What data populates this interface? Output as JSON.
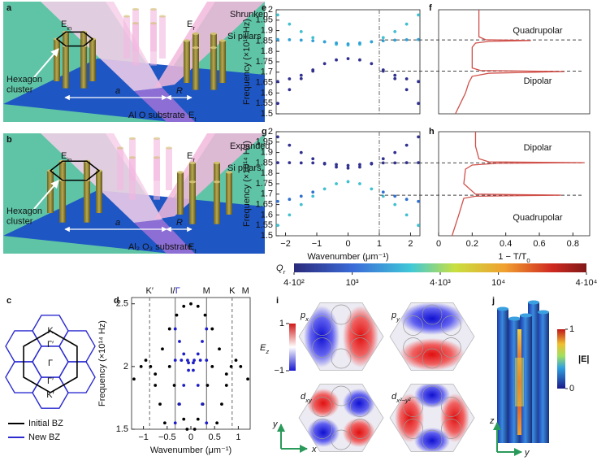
{
  "panels": {
    "a": {
      "letter": "a",
      "incident": {
        "main": "E",
        "sub": "in"
      },
      "reflected": {
        "main": "E",
        "sub": "r"
      },
      "mode": "Shrunken",
      "pillars": "Si pillars",
      "cluster": [
        "Hexagon",
        "cluster"
      ],
      "lattice": "a",
      "radius": "R",
      "substrate": "Al O substrate",
      "transmitted": {
        "main": "E",
        "sub": "t"
      }
    },
    "b": {
      "letter": "b",
      "incident": {
        "main": "E",
        "sub": "in"
      },
      "reflected": {
        "main": "E",
        "sub": "r"
      },
      "mode": "Expanded",
      "pillars": "Si pillars",
      "cluster": [
        "Hexagon",
        "cluster"
      ],
      "lattice": "a",
      "radius": "R",
      "substrate": "Al₂ O₃ substrate",
      "transmitted": {
        "main": "E",
        "sub": "t"
      }
    },
    "c": {
      "letter": "c",
      "points": [
        "K",
        "Γ′",
        "Γ",
        "Γ′",
        "K′"
      ],
      "legend": [
        {
          "name": "Initial BZ",
          "color": "#000000"
        },
        {
          "name": "New BZ",
          "color": "#2b2bd0"
        }
      ]
    },
    "i": {
      "letter": "i",
      "modes": [
        {
          "main": "p",
          "sub": "x"
        },
        {
          "main": "p",
          "sub": "y"
        },
        {
          "main": "d",
          "sub": "xy"
        },
        {
          "main": "d",
          "sub": "x²−y²"
        }
      ],
      "colorbar": {
        "label": {
          "main": "E",
          "sub": "z"
        },
        "range": [
          -1,
          1
        ],
        "ticks": [
          1,
          {
            "value": -1,
            "label": "−1"
          }
        ]
      },
      "axes": [
        "y",
        "x"
      ]
    },
    "j": {
      "letter": "j",
      "colorbar": {
        "label": "|E|",
        "range": [
          0,
          1
        ],
        "ticks": [
          1,
          0
        ]
      },
      "axes": [
        "z",
        "y"
      ]
    }
  },
  "colorbar": {
    "label": {
      "main": "Q",
      "sub": "r"
    },
    "range": [
      400,
      40000
    ],
    "log": true,
    "ticks": [
      {
        "value": 400,
        "label": "4·10²"
      },
      {
        "value": 1000,
        "label": "10³"
      },
      {
        "value": 4000,
        "label": "4·10³"
      },
      {
        "value": 10000,
        "label": "10⁴"
      },
      {
        "value": 40000,
        "label": "4·10⁴"
      }
    ]
  },
  "chart_data": [
    {
      "type": "scatter",
      "letter": "d",
      "x_label": "Wavenumber (μm⁻¹)",
      "y_label": "Frequency (×10¹⁴ Hz)",
      "xlim": [
        -1.25,
        1.25
      ],
      "xticks": [
        {
          "value": -1,
          "label": "−1"
        },
        {
          "value": -0.5,
          "label": "−0.5"
        },
        0,
        0.5,
        1
      ],
      "ylim": [
        1.5,
        2.55
      ],
      "yticks": [
        1.5,
        2,
        2.5
      ],
      "vlines": [
        {
          "value": -0.87,
          "style": "dashed",
          "label": "K′"
        },
        {
          "value": -0.33,
          "style": "solid",
          "label": [
            {
              "text": "I/",
              "color": "#000000"
            },
            {
              "text": "Γ",
              "color": "#1e1ec8"
            }
          ]
        },
        {
          "value": 0.33,
          "style": "solid",
          "label": "M",
          "label_color": "#1e1ec8"
        },
        {
          "value": 0.87,
          "style": "dashed",
          "label": "K"
        },
        {
          "value": 1.15,
          "style": "none",
          "label": "M"
        }
      ],
      "series": [
        {
          "color": "#000000",
          "x": [
            -0.75,
            -0.6,
            -0.45,
            -0.3,
            -0.15,
            0,
            0.15,
            0.3,
            0.45,
            0.6,
            0.75
          ],
          "values": [
            1.94,
            2.14,
            2.3,
            2.41,
            2.48,
            2.5,
            2.48,
            2.41,
            2.3,
            2.14,
            1.94
          ]
        },
        {
          "color": "#000000",
          "x": [
            -0.45,
            -0.35,
            -0.25,
            -0.15,
            -0.08
          ],
          "values": [
            2.0,
            1.85,
            1.7,
            1.58,
            1.5
          ]
        },
        {
          "color": "#000000",
          "x": [
            0.08,
            0.15,
            0.25,
            0.35,
            0.45
          ],
          "values": [
            1.5,
            1.58,
            1.7,
            1.85,
            2.0
          ]
        },
        {
          "color": "#000000",
          "x": [
            -1.2,
            -1.05,
            -0.95,
            -0.85,
            -0.75,
            -0.65,
            -0.55
          ],
          "values": [
            1.9,
            2.0,
            2.05,
            2.0,
            1.85,
            1.7,
            1.55
          ]
        },
        {
          "color": "#000000",
          "x": [
            0.55,
            0.65,
            0.75,
            0.85,
            0.95,
            1.05,
            1.2
          ],
          "values": [
            1.55,
            1.7,
            1.85,
            2.0,
            2.05,
            2.0,
            1.9
          ]
        },
        {
          "color": "#1e1ec8",
          "x": [
            -0.33,
            -0.2,
            -0.07,
            0.07,
            0.2,
            0.33
          ],
          "values": [
            2.05,
            2.05,
            2.05,
            2.05,
            2.05,
            2.05
          ]
        },
        {
          "color": "#1e1ec8",
          "x": [
            -0.33,
            -0.24,
            -0.15,
            -0.05,
            0.05,
            0.15,
            0.24,
            0.33
          ],
          "values": [
            2.3,
            2.2,
            2.1,
            2.03,
            2.03,
            2.1,
            2.2,
            2.3
          ]
        },
        {
          "color": "#1e1ec8",
          "x": [
            -0.33,
            -0.24,
            -0.15,
            -0.05,
            0.05,
            0.15,
            0.24,
            0.33
          ],
          "values": [
            1.55,
            1.7,
            1.85,
            1.97,
            1.97,
            1.85,
            1.7,
            1.55
          ]
        }
      ]
    },
    {
      "type": "scatter",
      "letter": "e",
      "y_label": "Frequency (×10¹⁴ Hz)",
      "xlim": [
        -2.3,
        2.3
      ],
      "ylim": [
        1.5,
        2.0
      ],
      "yticks": [
        1.5,
        1.55,
        1.6,
        1.65,
        1.7,
        1.75,
        1.8,
        1.85,
        1.9,
        1.95,
        2
      ],
      "vlines": [
        {
          "value": 1,
          "style": "dashdot"
        }
      ],
      "x": [
        -2.25,
        -1.875,
        -1.5,
        -1.125,
        -0.75,
        -0.375,
        0,
        0.375,
        0.75,
        1.125,
        1.5,
        1.875,
        2.25
      ],
      "series": [
        {
          "color": "#40c0d0",
          "values": [
            1.975,
            1.931,
            1.895,
            1.866,
            1.846,
            1.834,
            1.83,
            1.834,
            1.846,
            1.866,
            1.895,
            1.931,
            1.975
          ]
        },
        {
          "color": "#30a0d8",
          "values": [
            1.857,
            1.856,
            1.854,
            1.851,
            1.846,
            1.84,
            1.836,
            1.84,
            1.846,
            1.851,
            1.854,
            1.856,
            1.857
          ]
        },
        {
          "color": "#303090",
          "values": [
            1.55,
            1.616,
            1.669,
            1.711,
            1.741,
            1.759,
            1.765,
            1.759,
            1.741,
            1.711,
            1.669,
            1.616,
            1.55
          ]
        },
        {
          "color": "#303090",
          "values": [
            1.655,
            1.668,
            1.685,
            1.705,
            null,
            null,
            null,
            null,
            null,
            1.705,
            1.685,
            1.668,
            1.655
          ]
        }
      ]
    },
    {
      "type": "line",
      "letter": "f",
      "xlim": [
        0,
        0.9
      ],
      "ylim": [
        1.5,
        2.0
      ],
      "hlines": [
        {
          "value": 1.855,
          "style": "dashed"
        },
        {
          "value": 1.705,
          "style": "dashed"
        }
      ],
      "labels": [
        "Quadrupolar",
        "Dipolar"
      ],
      "series": [
        {
          "color": "#d0504a",
          "x": [
            0.1,
            0.13,
            0.16,
            0.18,
            0.2,
            0.3,
            0.75,
            0.25,
            0.2,
            0.2,
            0.2,
            0.22,
            0.3,
            0.55,
            0.28,
            0.24,
            0.24,
            0.24
          ],
          "values": [
            1.5,
            1.55,
            1.6,
            1.65,
            1.68,
            1.695,
            1.703,
            1.708,
            1.72,
            1.78,
            1.82,
            1.84,
            1.848,
            1.852,
            1.856,
            1.87,
            1.92,
            2.0
          ]
        }
      ]
    },
    {
      "type": "scatter",
      "letter": "g",
      "x_label": "Wavenumber (μm⁻¹)",
      "y_label": "Frequency (×10¹⁴ Hz)",
      "xlim": [
        -2.3,
        2.3
      ],
      "xticks": [
        {
          "value": -2,
          "label": "−2"
        },
        {
          "value": -1,
          "label": "−1"
        },
        0,
        1,
        2
      ],
      "ylim": [
        1.5,
        2.0
      ],
      "yticks": [
        1.5,
        1.55,
        1.6,
        1.65,
        1.7,
        1.75,
        1.8,
        1.85,
        1.9,
        1.95,
        2
      ],
      "vlines": [
        {
          "value": 1,
          "style": "dashdot"
        }
      ],
      "x": [
        -2.25,
        -1.875,
        -1.5,
        -1.125,
        -0.75,
        -0.375,
        0,
        0.375,
        0.75,
        1.125,
        1.5,
        1.875,
        2.25
      ],
      "series": [
        {
          "color": "#303090",
          "values": [
            1.975,
            1.935,
            1.9,
            1.87,
            1.845,
            1.83,
            1.825,
            1.83,
            1.845,
            1.87,
            1.9,
            1.935,
            1.975
          ]
        },
        {
          "color": "#303090",
          "values": [
            1.851,
            1.851,
            1.85,
            1.85,
            1.848,
            1.842,
            1.838,
            1.842,
            1.848,
            1.85,
            1.85,
            1.851,
            1.851
          ]
        },
        {
          "color": "#40c0d0",
          "values": [
            1.55,
            1.6,
            1.65,
            1.69,
            1.725,
            1.75,
            1.76,
            1.75,
            1.725,
            1.69,
            1.65,
            1.6,
            1.55
          ]
        },
        {
          "color": "#3070d0",
          "values": [
            1.665,
            1.675,
            1.69,
            1.71,
            null,
            null,
            null,
            null,
            null,
            1.71,
            1.69,
            1.675,
            1.665
          ]
        }
      ]
    },
    {
      "type": "line",
      "letter": "h",
      "x_label": {
        "main": "1 − T/T",
        "sub": "0"
      },
      "xlim": [
        0,
        0.9
      ],
      "xticks": [
        0,
        0.2,
        0.4,
        0.6,
        0.8
      ],
      "ylim": [
        1.5,
        2.0
      ],
      "hlines": [
        {
          "value": 1.85,
          "style": "dashed"
        },
        {
          "value": 1.695,
          "style": "dashed"
        }
      ],
      "labels": [
        "Dipolar",
        "Quadrupolar"
      ],
      "series": [
        {
          "color": "#d0504a",
          "x": [
            0.08,
            0.12,
            0.15,
            0.22,
            0.73,
            0.22,
            0.15,
            0.16,
            0.2,
            0.35,
            0.87,
            0.3,
            0.24,
            0.22,
            0.22
          ],
          "values": [
            1.5,
            1.6,
            1.68,
            1.69,
            1.695,
            1.7,
            1.75,
            1.82,
            1.84,
            1.848,
            1.851,
            1.855,
            1.87,
            1.93,
            2.0
          ]
        }
      ]
    }
  ]
}
